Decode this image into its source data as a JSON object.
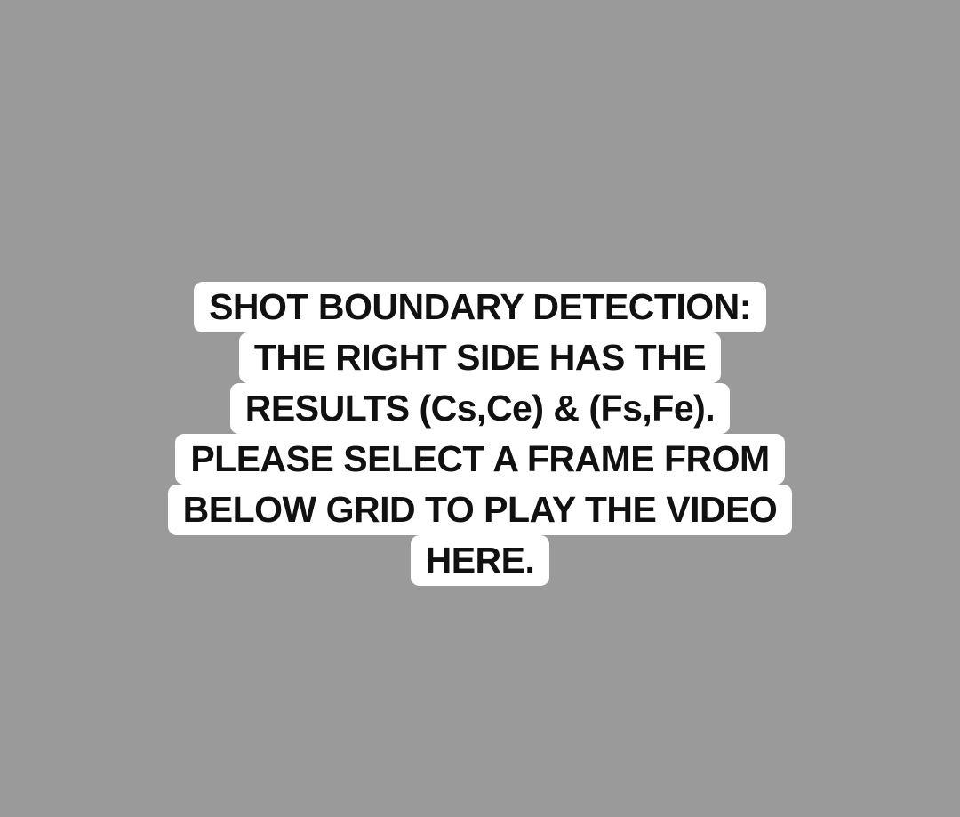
{
  "player": {
    "placeholder_lines": [
      "SHOT BOUNDARY DETECTION:",
      "THE RIGHT SIDE HAS THE",
      "RESULTS (Cs,Ce) & (Fs,Fe).",
      "PLEASE SELECT A FRAME FROM",
      "BELOW GRID TO PLAY THE VIDEO",
      "HERE."
    ],
    "background_color": "#9a9a9a",
    "caption_bg_color": "#ffffff",
    "caption_text_color": "#111111"
  }
}
